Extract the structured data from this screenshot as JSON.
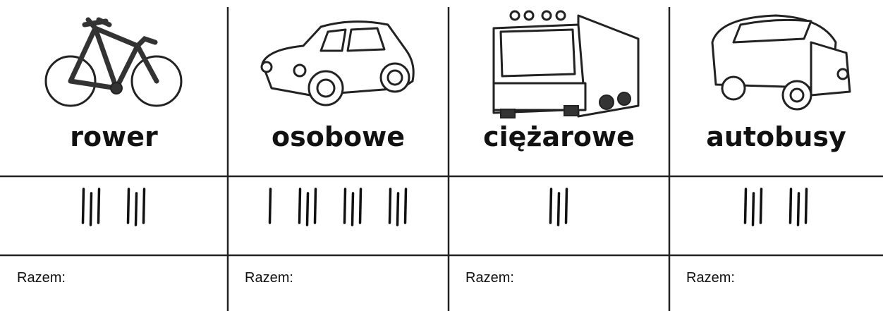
{
  "columns": [
    {
      "label": "rower",
      "tallies": [
        3,
        3
      ],
      "total_label": "Razem:"
    },
    {
      "label": "osobowe",
      "tallies": [
        1,
        3,
        3,
        3
      ],
      "total_label": "Razem:"
    },
    {
      "label": "ciężarowe",
      "tallies": [
        3
      ],
      "total_label": "Razem:"
    },
    {
      "label": "autobusy",
      "tallies": [
        3,
        3
      ],
      "total_label": "Razem:"
    }
  ]
}
